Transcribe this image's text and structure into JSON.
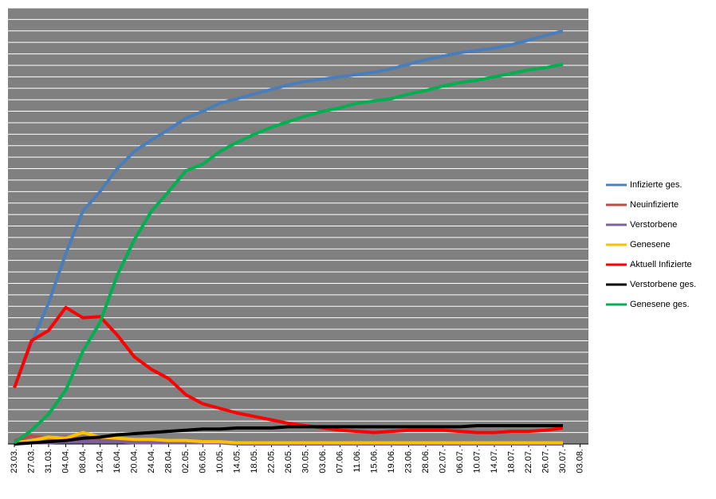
{
  "chart_data": {
    "type": "line",
    "categories": [
      "23.03.",
      "27.03.",
      "31.03.",
      "04.04.",
      "08.04.",
      "12.04.",
      "16.04.",
      "20.04.",
      "24.04.",
      "28.04.",
      "02.05.",
      "06.05.",
      "10.05.",
      "14.05.",
      "18.05.",
      "22.05.",
      "26.05.",
      "30.05.",
      "03.06.",
      "07.06.",
      "11.06.",
      "15.06.",
      "19.06.",
      "23.06.",
      "28.06.",
      "02.07.",
      "06.07.",
      "10.07.",
      "14.07.",
      "18.07.",
      "22.07.",
      "26.07.",
      "30.07.",
      "03.08."
    ],
    "ylim": [
      0,
      38
    ],
    "grid": true,
    "legend": "right",
    "series": [
      {
        "name": "Infizierte ges.",
        "color": "#4a7ebb",
        "values": [
          4.9,
          8.8,
          12.3,
          16.6,
          20.3,
          22.0,
          24.0,
          25.5,
          26.5,
          27.4,
          28.4,
          29.0,
          29.7,
          30.1,
          30.5,
          30.9,
          31.3,
          31.6,
          31.8,
          32.0,
          32.2,
          32.4,
          32.7,
          33.1,
          33.5,
          33.8,
          34.1,
          34.3,
          34.5,
          34.8,
          35.2,
          35.6,
          36.0,
          null
        ]
      },
      {
        "name": "Neuinfizierte",
        "color": "#be4b48",
        "values": [
          0.3,
          0.7,
          0.5,
          0.6,
          0.4,
          0.3,
          0.3,
          0.2,
          0.2,
          0.2,
          0.1,
          0.1,
          0.1,
          0.1,
          0.1,
          0.1,
          0.1,
          0.1,
          0.1,
          0.1,
          0.1,
          0.1,
          0.1,
          0.1,
          0.1,
          0.1,
          0.1,
          0.1,
          0.1,
          0.1,
          0.1,
          0.1,
          0.1,
          null
        ]
      },
      {
        "name": "Verstorbene",
        "color": "#7d60a0",
        "values": [
          0.0,
          0.1,
          0.1,
          0.2,
          0.2,
          0.2,
          0.2,
          0.1,
          0.1,
          0.1,
          0.1,
          0.1,
          0.1,
          0.0,
          0.0,
          0.0,
          0.0,
          0.0,
          0.0,
          0.0,
          0.0,
          0.0,
          0.0,
          0.0,
          0.0,
          0.0,
          0.0,
          0.0,
          0.0,
          0.0,
          0.0,
          0.0,
          0.0,
          null
        ]
      },
      {
        "name": "Genesene",
        "color": "#ffc000",
        "values": [
          0.1,
          0.3,
          0.6,
          0.5,
          1.0,
          0.6,
          0.5,
          0.4,
          0.4,
          0.3,
          0.3,
          0.2,
          0.2,
          0.1,
          0.1,
          0.1,
          0.1,
          0.1,
          0.1,
          0.1,
          0.1,
          0.1,
          0.1,
          0.1,
          0.1,
          0.1,
          0.1,
          0.1,
          0.1,
          0.1,
          0.1,
          0.1,
          0.1,
          null
        ]
      },
      {
        "name": "Aktuell Infizierte",
        "color": "#ff0000",
        "values": [
          4.9,
          9.0,
          9.9,
          11.9,
          11.0,
          11.1,
          9.5,
          7.6,
          6.5,
          5.7,
          4.3,
          3.5,
          3.1,
          2.7,
          2.4,
          2.1,
          1.8,
          1.6,
          1.4,
          1.2,
          1.1,
          1.0,
          1.1,
          1.2,
          1.2,
          1.2,
          1.1,
          1.0,
          1.0,
          1.1,
          1.1,
          1.2,
          1.4,
          null
        ]
      },
      {
        "name": "Verstorbene ges.",
        "color": "#000000",
        "values": [
          0.0,
          0.1,
          0.2,
          0.3,
          0.5,
          0.6,
          0.8,
          0.9,
          1.0,
          1.1,
          1.2,
          1.3,
          1.3,
          1.4,
          1.4,
          1.4,
          1.5,
          1.5,
          1.5,
          1.5,
          1.5,
          1.5,
          1.5,
          1.5,
          1.5,
          1.5,
          1.5,
          1.6,
          1.6,
          1.6,
          1.6,
          1.6,
          1.6,
          null
        ]
      },
      {
        "name": "Genesene ges.",
        "color": "#00b050",
        "values": [
          0.1,
          1.2,
          2.6,
          4.7,
          8.1,
          10.6,
          14.7,
          17.8,
          20.3,
          22.0,
          23.8,
          24.4,
          25.5,
          26.3,
          27.0,
          27.6,
          28.1,
          28.6,
          29.0,
          29.3,
          29.7,
          29.9,
          30.1,
          30.5,
          30.8,
          31.2,
          31.5,
          31.7,
          32.0,
          32.3,
          32.6,
          32.8,
          33.1,
          null
        ]
      }
    ]
  }
}
